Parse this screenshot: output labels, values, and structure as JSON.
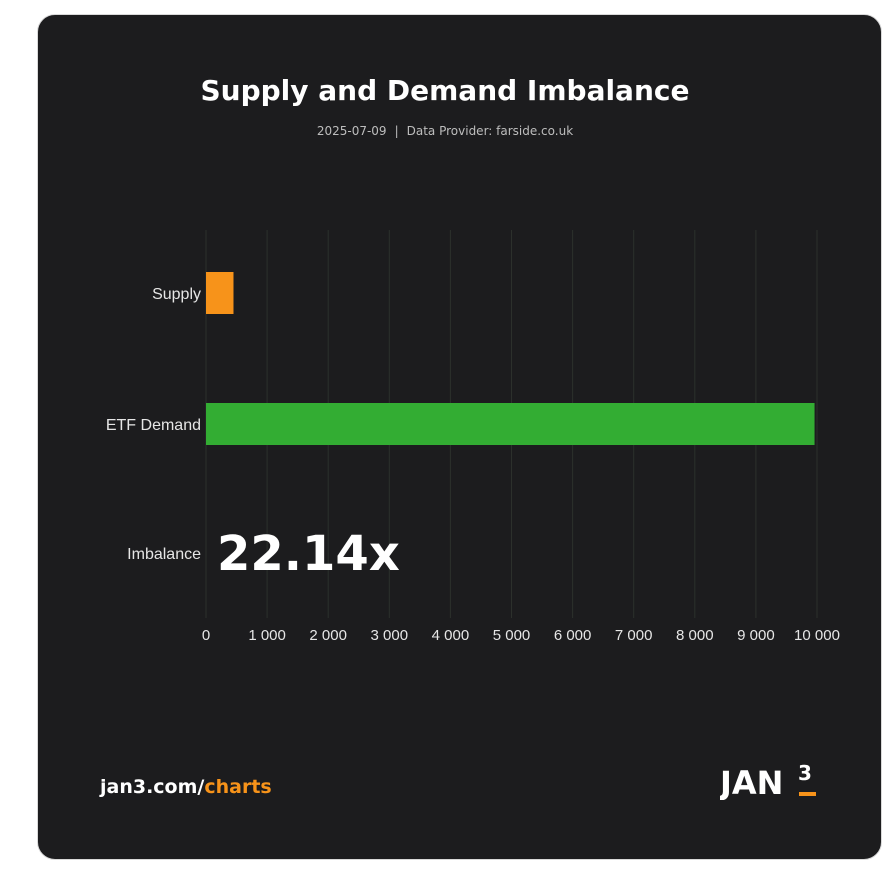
{
  "chart_data": {
    "type": "bar",
    "orientation": "horizontal",
    "title": "Supply and Demand Imbalance",
    "subtitle": {
      "date": "2025-07-09",
      "separator": "|",
      "provider": "Data Provider: farside.co.uk"
    },
    "categories": [
      "Supply",
      "ETF Demand",
      "Imbalance"
    ],
    "values": [
      450,
      9960,
      null
    ],
    "bar_colors": [
      "#f7931a",
      "#33ad33",
      null
    ],
    "annotation": {
      "category": "Imbalance",
      "text": "22.14x"
    },
    "xlim": [
      0,
      10000
    ],
    "x_ticks": [
      0,
      1000,
      2000,
      3000,
      4000,
      5000,
      6000,
      7000,
      8000,
      9000,
      10000
    ],
    "x_tick_labels": [
      "0",
      "1 000",
      "2 000",
      "3 000",
      "4 000",
      "5 000",
      "6 000",
      "7 000",
      "8 000",
      "9 000",
      "10 000"
    ],
    "grid": true,
    "xlabel": "",
    "ylabel": ""
  },
  "footer": {
    "link_prefix": "jan3.com/",
    "link_accent": "charts"
  },
  "logo": {
    "text": "JAN",
    "superscript": "3"
  },
  "colors": {
    "background": "#1c1c1e",
    "accent": "#f7931a",
    "green": "#33ad33",
    "grid": "#2c302c"
  }
}
